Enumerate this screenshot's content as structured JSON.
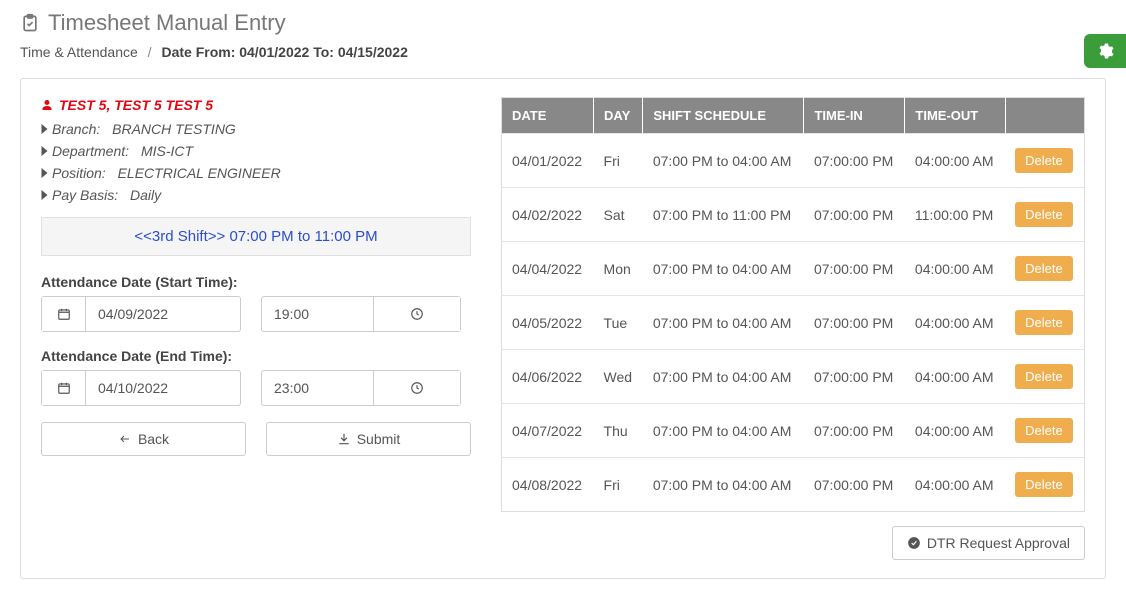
{
  "header": {
    "title": "Timesheet Manual Entry",
    "breadcrumb_link": "Time & Attendance",
    "breadcrumb_current": "Date From: 04/01/2022 To: 04/15/2022"
  },
  "colors": {
    "emp_name": "#e30613",
    "shift_text": "#2b4dd0",
    "table_header_bg": "#888888",
    "delete_bg": "#f0ad4e",
    "gear_bg": "#3a9d3a"
  },
  "employee": {
    "name": "TEST 5, TEST 5 TEST 5",
    "branch_label": "Branch:",
    "branch": "BRANCH TESTING",
    "department_label": "Department:",
    "department": "MIS-ICT",
    "position_label": "Position:",
    "position": "ELECTRICAL ENGINEER",
    "paybasis_label": "Pay Basis:",
    "paybasis": "Daily"
  },
  "shift_banner": "<<3rd Shift>> 07:00 PM to 11:00 PM",
  "form": {
    "start_label": "Attendance Date (Start Time):",
    "start_date": "04/09/2022",
    "start_time": "19:00",
    "end_label": "Attendance Date (End Time):",
    "end_date": "04/10/2022",
    "end_time": "23:00",
    "back_label": "Back",
    "submit_label": "Submit"
  },
  "table": {
    "headers": {
      "date": "DATE",
      "day": "DAY",
      "shift": "SHIFT SCHEDULE",
      "timein": "TIME-IN",
      "timeout": "TIME-OUT",
      "action": ""
    },
    "delete_label": "Delete",
    "rows": [
      {
        "date": "04/01/2022",
        "day": "Fri",
        "shift": "07:00 PM to 04:00 AM",
        "timein": "07:00:00 PM",
        "timeout": "04:00:00 AM"
      },
      {
        "date": "04/02/2022",
        "day": "Sat",
        "shift": "07:00 PM to 11:00 PM",
        "timein": "07:00:00 PM",
        "timeout": "11:00:00 PM"
      },
      {
        "date": "04/04/2022",
        "day": "Mon",
        "shift": "07:00 PM to 04:00 AM",
        "timein": "07:00:00 PM",
        "timeout": "04:00:00 AM"
      },
      {
        "date": "04/05/2022",
        "day": "Tue",
        "shift": "07:00 PM to 04:00 AM",
        "timein": "07:00:00 PM",
        "timeout": "04:00:00 AM"
      },
      {
        "date": "04/06/2022",
        "day": "Wed",
        "shift": "07:00 PM to 04:00 AM",
        "timein": "07:00:00 PM",
        "timeout": "04:00:00 AM"
      },
      {
        "date": "04/07/2022",
        "day": "Thu",
        "shift": "07:00 PM to 04:00 AM",
        "timein": "07:00:00 PM",
        "timeout": "04:00:00 AM"
      },
      {
        "date": "04/08/2022",
        "day": "Fri",
        "shift": "07:00 PM to 04:00 AM",
        "timein": "07:00:00 PM",
        "timeout": "04:00:00 AM"
      }
    ]
  },
  "footer": {
    "approval_label": "DTR Request Approval"
  }
}
